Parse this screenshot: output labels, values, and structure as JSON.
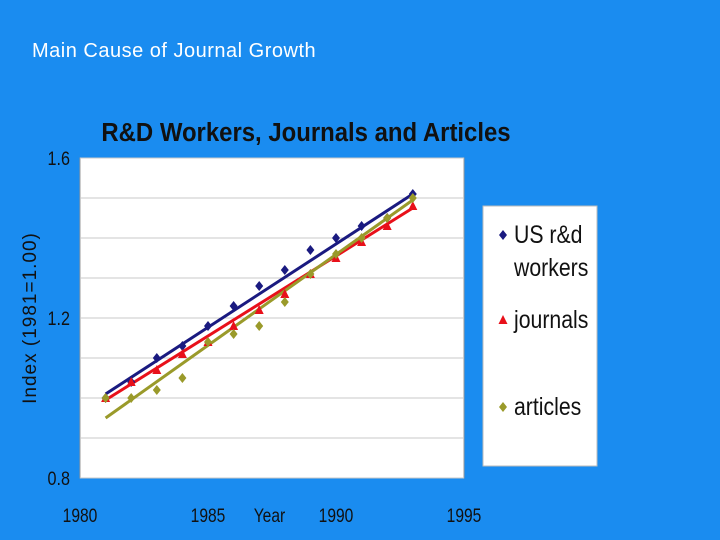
{
  "slide": {
    "title": "Main Cause of Journal Growth"
  },
  "colors": {
    "background": "#1a8cf0",
    "plot_bg": "#ffffff",
    "workers": "#1a1a80",
    "journals": "#e8101a",
    "articles": "#9a9a2a"
  },
  "chart_data": {
    "type": "scatter",
    "title": "R&D Workers, Journals and Articles",
    "xlabel": "Year",
    "ylabel": "Index (1981=1.00)",
    "xlim": [
      1980,
      1995
    ],
    "ylim": [
      0.8,
      1.6
    ],
    "x_ticks": [
      "1980",
      "1985",
      "1990",
      "1995"
    ],
    "y_ticks": [
      "0.8",
      "1.2",
      "1.6"
    ],
    "grid": "horizontal",
    "legend_position": "right",
    "series": [
      {
        "name": "US r&d workers",
        "legend_lines": [
          "US r&d",
          "workers"
        ],
        "marker": "diamond",
        "color": "#1a1a80",
        "x": [
          1981,
          1982,
          1983,
          1984,
          1985,
          1986,
          1987,
          1988,
          1989,
          1990,
          1991,
          1992,
          1993
        ],
        "y": [
          1.0,
          1.04,
          1.1,
          1.13,
          1.18,
          1.23,
          1.28,
          1.32,
          1.37,
          1.4,
          1.43,
          1.45,
          1.51
        ],
        "trend": [
          [
            1981,
            1.01
          ],
          [
            1993,
            1.51
          ]
        ]
      },
      {
        "name": "journals",
        "legend_lines": [
          "journals"
        ],
        "marker": "triangle",
        "color": "#e8101a",
        "x": [
          1981,
          1982,
          1983,
          1984,
          1985,
          1986,
          1987,
          1988,
          1989,
          1990,
          1991,
          1992,
          1993
        ],
        "y": [
          1.0,
          1.04,
          1.07,
          1.11,
          1.14,
          1.18,
          1.22,
          1.26,
          1.31,
          1.35,
          1.39,
          1.43,
          1.48
        ],
        "trend": [
          [
            1981,
            0.995
          ],
          [
            1993,
            1.475
          ]
        ]
      },
      {
        "name": "articles",
        "legend_lines": [
          "articles"
        ],
        "marker": "diamond",
        "color": "#9a9a2a",
        "x": [
          1981,
          1982,
          1983,
          1984,
          1985,
          1986,
          1987,
          1988,
          1989,
          1990,
          1991,
          1992,
          1993
        ],
        "y": [
          1.0,
          1.0,
          1.02,
          1.05,
          1.14,
          1.16,
          1.18,
          1.24,
          1.31,
          1.36,
          1.4,
          1.45,
          1.5
        ],
        "trend": [
          [
            1981,
            0.95
          ],
          [
            1993,
            1.495
          ]
        ]
      }
    ]
  }
}
